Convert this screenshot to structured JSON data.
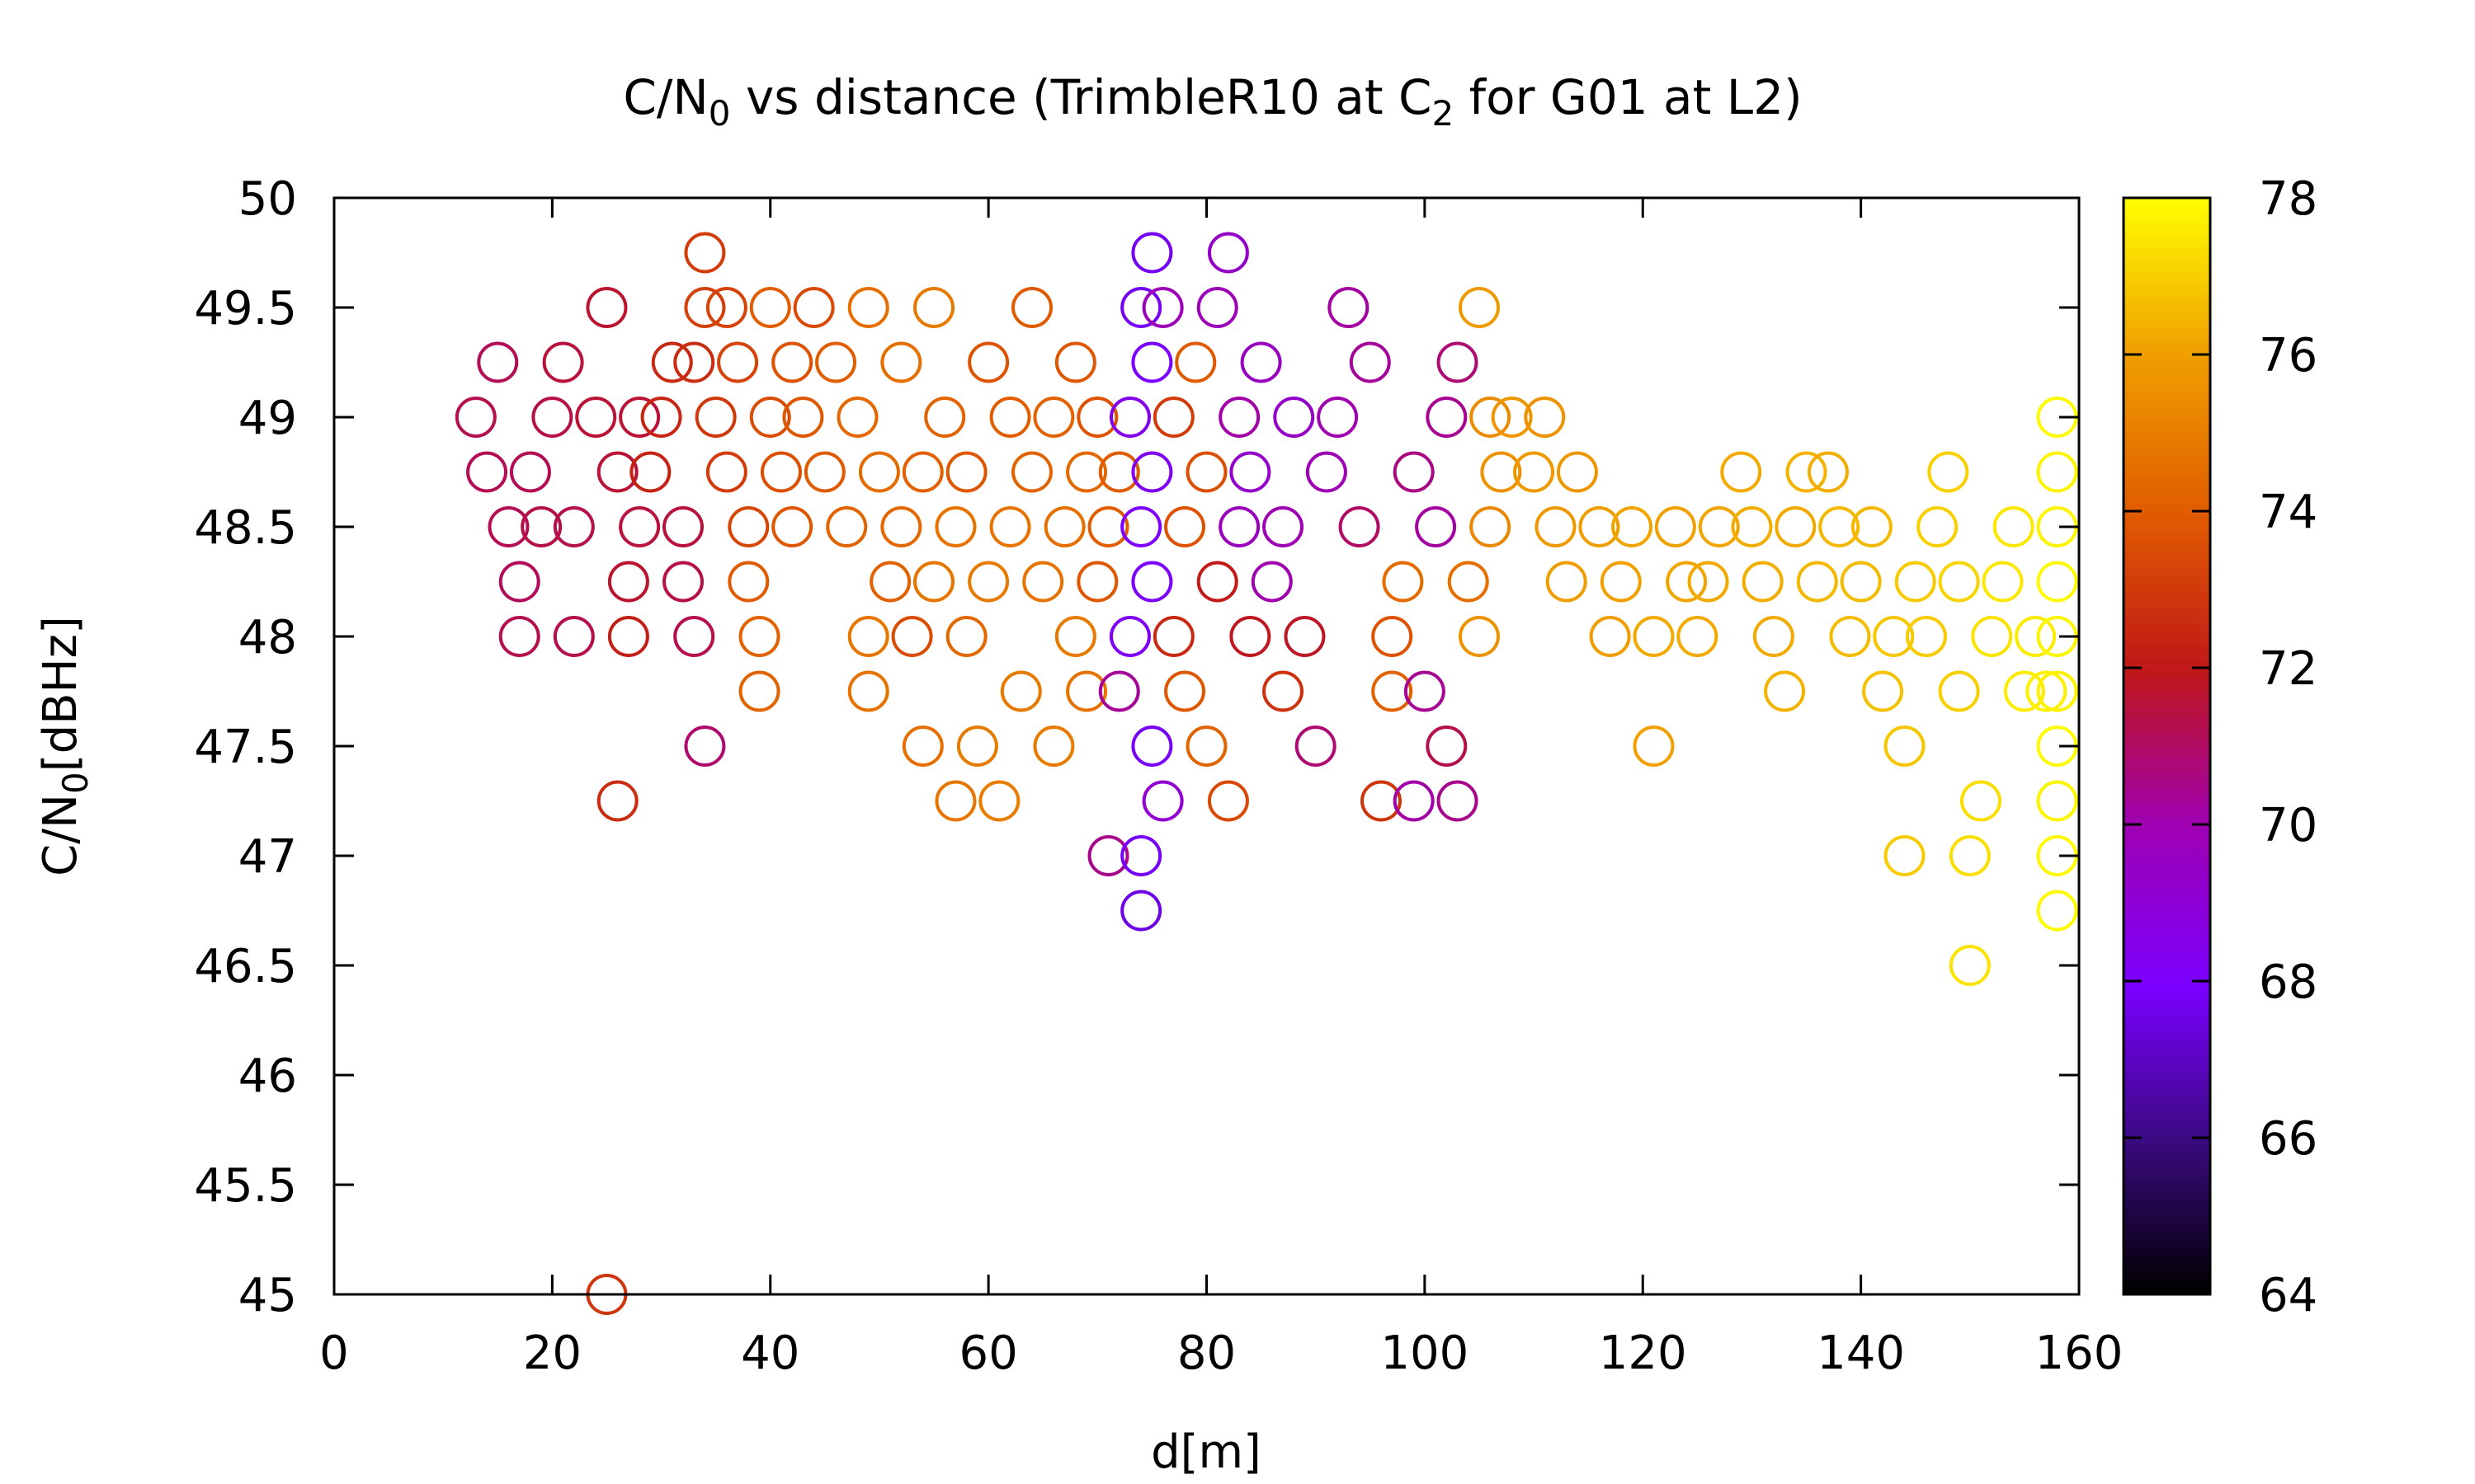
{
  "chart_data": {
    "type": "scatter",
    "title": "C/N0 vs distance (TrimbleR10 at C2 for G01 at L2)",
    "title_parts": {
      "a": "C/N",
      "sub1": "0",
      "b": " vs distance (TrimbleR10 at C",
      "sub2": "2",
      "c": " for G01 at L2)"
    },
    "xlabel": "d[m]",
    "ylabel_parts": {
      "a": "C/N",
      "sub": "0",
      "b": "[dBHz]"
    },
    "xlim": [
      0,
      160
    ],
    "ylim": [
      45,
      50
    ],
    "xticks": [
      "0",
      "20",
      "40",
      "60",
      "80",
      "100",
      "120",
      "140",
      "160"
    ],
    "yticks": [
      "45",
      "45.5",
      "46",
      "46.5",
      "47",
      "47.5",
      "48",
      "48.5",
      "49",
      "49.5",
      "50"
    ],
    "colorbar": {
      "min": 64,
      "max": 78,
      "ticks": [
        "64",
        "66",
        "68",
        "70",
        "72",
        "74",
        "76",
        "78"
      ],
      "palette": "black-blue-purple-red-orange-yellow"
    },
    "points": [
      [
        14,
        48.75,
        71.2
      ],
      [
        15,
        49.25,
        71.2
      ],
      [
        13,
        49,
        71.3
      ],
      [
        16,
        48.5,
        71.2
      ],
      [
        17,
        48.25,
        71.1
      ],
      [
        17,
        48,
        71.3
      ],
      [
        18,
        48.75,
        71.2
      ],
      [
        19,
        48.5,
        71.4
      ],
      [
        20,
        49,
        71.4
      ],
      [
        21,
        49.25,
        71.5
      ],
      [
        22,
        48,
        71.3
      ],
      [
        22,
        48.5,
        71.3
      ],
      [
        24,
        49,
        71.6
      ],
      [
        25,
        49.5,
        71.7
      ],
      [
        26,
        48.75,
        71.6
      ],
      [
        25,
        45,
        72.9
      ],
      [
        26,
        47.25,
        72.6
      ],
      [
        27,
        48,
        72.2
      ],
      [
        27,
        48.25,
        71.7
      ],
      [
        28,
        48.5,
        71.5
      ],
      [
        28,
        49,
        71.6
      ],
      [
        29,
        48.75,
        72.3
      ],
      [
        30,
        49,
        72.4
      ],
      [
        31,
        49.25,
        72.5
      ],
      [
        32,
        48.5,
        71.5
      ],
      [
        32,
        48.25,
        71.4
      ],
      [
        33,
        48,
        71.3
      ],
      [
        33,
        49.25,
        72.6
      ],
      [
        34,
        49.5,
        73.2
      ],
      [
        34,
        49.75,
        73.1
      ],
      [
        34,
        47.5,
        70.9
      ],
      [
        35,
        49,
        73.0
      ],
      [
        36,
        49.5,
        73.3
      ],
      [
        36,
        48.75,
        73.1
      ],
      [
        37,
        49.25,
        73.3
      ],
      [
        38,
        48.5,
        73.4
      ],
      [
        38,
        48.25,
        74.0
      ],
      [
        39,
        48,
        74.2
      ],
      [
        39,
        47.75,
        74.3
      ],
      [
        40,
        49,
        73.6
      ],
      [
        40,
        49.5,
        74.1
      ],
      [
        41,
        48.75,
        73.7
      ],
      [
        42,
        49.25,
        73.8
      ],
      [
        42,
        48.5,
        73.9
      ],
      [
        43,
        49,
        73.9
      ],
      [
        44,
        49.5,
        73.5
      ],
      [
        45,
        48.75,
        74.0
      ],
      [
        46,
        49.25,
        74.1
      ],
      [
        47,
        48.5,
        74.3
      ],
      [
        48,
        49,
        74.4
      ],
      [
        49,
        49.5,
        74.6
      ],
      [
        50,
        48.75,
        74.5
      ],
      [
        49,
        48,
        74.8
      ],
      [
        49,
        47.75,
        74.7
      ],
      [
        51,
        48.25,
        74.2
      ],
      [
        52,
        48.5,
        74.4
      ],
      [
        52,
        49.25,
        74.6
      ],
      [
        53,
        48,
        73.6
      ],
      [
        54,
        48.75,
        74.2
      ],
      [
        54,
        47.5,
        74.6
      ],
      [
        55,
        49.5,
        74.9
      ],
      [
        55,
        48.25,
        74.8
      ],
      [
        56,
        49,
        74.3
      ],
      [
        57,
        48.5,
        74.7
      ],
      [
        57,
        47.25,
        74.8
      ],
      [
        58,
        48,
        74.4
      ],
      [
        58,
        48.75,
        73.9
      ],
      [
        59,
        47.5,
        74.9
      ],
      [
        60,
        49.25,
        73.8
      ],
      [
        60,
        48.25,
        74.9
      ],
      [
        61,
        47.25,
        75.0
      ],
      [
        62,
        48.5,
        74.7
      ],
      [
        62,
        49,
        74.1
      ],
      [
        63,
        47.75,
        74.9
      ],
      [
        64,
        49.5,
        74.0
      ],
      [
        64,
        48.75,
        74.3
      ],
      [
        65,
        48.25,
        74.7
      ],
      [
        66,
        47.5,
        74.9
      ],
      [
        66,
        49,
        74.2
      ],
      [
        67,
        48.5,
        74.6
      ],
      [
        68,
        48,
        74.9
      ],
      [
        68,
        49.25,
        73.9
      ],
      [
        69,
        48.75,
        74.4
      ],
      [
        69,
        47.75,
        74.7
      ],
      [
        70,
        49,
        73.8
      ],
      [
        70,
        48.25,
        73.9
      ],
      [
        71,
        48.5,
        74.1
      ],
      [
        71,
        47,
        70.5
      ],
      [
        72,
        47.75,
        70.3
      ],
      [
        72,
        48.75,
        74.0
      ],
      [
        73,
        49,
        68.5
      ],
      [
        73,
        48,
        68.2
      ],
      [
        74,
        49.5,
        67.8
      ],
      [
        74,
        47,
        67.9
      ],
      [
        74,
        46.75,
        67.6
      ],
      [
        74,
        48.5,
        68.1
      ],
      [
        75,
        49.75,
        67.8
      ],
      [
        75,
        49.25,
        68.0
      ],
      [
        75,
        48.75,
        68.3
      ],
      [
        75,
        48.25,
        68.1
      ],
      [
        75,
        47.5,
        67.9
      ],
      [
        76,
        49.5,
        69.8
      ],
      [
        76,
        47.25,
        69.2
      ],
      [
        77,
        48,
        72.5
      ],
      [
        77,
        49,
        73.1
      ],
      [
        78,
        48.5,
        73.8
      ],
      [
        78,
        47.75,
        73.9
      ],
      [
        79,
        49.25,
        74.0
      ],
      [
        80,
        48.75,
        73.7
      ],
      [
        80,
        47.5,
        74.3
      ],
      [
        81,
        48.25,
        72.1
      ],
      [
        81,
        49.5,
        69.8
      ],
      [
        82,
        49.75,
        69.4
      ],
      [
        82,
        47.25,
        73.5
      ],
      [
        83,
        48.5,
        69.7
      ],
      [
        83,
        49,
        70.1
      ],
      [
        84,
        48,
        71.9
      ],
      [
        84,
        48.75,
        69.3
      ],
      [
        85,
        49.25,
        69.6
      ],
      [
        86,
        48.25,
        70.0
      ],
      [
        87,
        48.5,
        69.9
      ],
      [
        87,
        47.75,
        72.8
      ],
      [
        88,
        49,
        69.4
      ],
      [
        89,
        48,
        71.8
      ],
      [
        90,
        47.5,
        70.8
      ],
      [
        91,
        48.75,
        69.9
      ],
      [
        92,
        49,
        70.0
      ],
      [
        93,
        49.5,
        70.2
      ],
      [
        94,
        48.5,
        71.0
      ],
      [
        95,
        49.25,
        70.3
      ],
      [
        96,
        47.25,
        72.9
      ],
      [
        97,
        48,
        73.8
      ],
      [
        97,
        47.75,
        74.2
      ],
      [
        98,
        48.25,
        74.5
      ],
      [
        99,
        48.75,
        70.6
      ],
      [
        99,
        47.25,
        70.1
      ],
      [
        100,
        47.75,
        70.4
      ],
      [
        101,
        48.5,
        70.2
      ],
      [
        102,
        49,
        70.4
      ],
      [
        102,
        47.5,
        71.3
      ],
      [
        103,
        47.25,
        70.5
      ],
      [
        103,
        49.25,
        70.8
      ],
      [
        104,
        48.25,
        74.6
      ],
      [
        105,
        49.5,
        75.8
      ],
      [
        105,
        48,
        75.6
      ],
      [
        106,
        49,
        75.4
      ],
      [
        106,
        48.5,
        75.3
      ],
      [
        107,
        48.75,
        75.6
      ],
      [
        108,
        49,
        75.7
      ],
      [
        110,
        48.75,
        75.8
      ],
      [
        111,
        49,
        75.6
      ],
      [
        112,
        48.5,
        75.8
      ],
      [
        113,
        48.25,
        75.9
      ],
      [
        114,
        48.75,
        75.7
      ],
      [
        116,
        48.5,
        75.9
      ],
      [
        117,
        48,
        75.9
      ],
      [
        118,
        48.25,
        76.0
      ],
      [
        119,
        48.5,
        76.1
      ],
      [
        121,
        48,
        76.2
      ],
      [
        121,
        47.5,
        76.0
      ],
      [
        123,
        48.5,
        76.0
      ],
      [
        124,
        48.25,
        76.1
      ],
      [
        125,
        48,
        76.2
      ],
      [
        126,
        48.25,
        76.2
      ],
      [
        127,
        48.5,
        76.1
      ],
      [
        129,
        48.75,
        76.2
      ],
      [
        130,
        48.5,
        76.3
      ],
      [
        131,
        48.25,
        76.3
      ],
      [
        132,
        48,
        76.2
      ],
      [
        133,
        47.75,
        76.4
      ],
      [
        134,
        48.5,
        76.2
      ],
      [
        135,
        48.75,
        76.4
      ],
      [
        136,
        48.25,
        76.5
      ],
      [
        137,
        48.75,
        76.3
      ],
      [
        138,
        48.5,
        76.5
      ],
      [
        139,
        48,
        76.6
      ],
      [
        140,
        48.25,
        76.6
      ],
      [
        141,
        48.5,
        76.5
      ],
      [
        142,
        47.75,
        76.7
      ],
      [
        143,
        48,
        76.8
      ],
      [
        144,
        47,
        76.9
      ],
      [
        144,
        47.5,
        76.8
      ],
      [
        145,
        48.25,
        76.9
      ],
      [
        146,
        48,
        76.9
      ],
      [
        147,
        48.5,
        77.0
      ],
      [
        148,
        48.75,
        77.0
      ],
      [
        149,
        48.25,
        77.1
      ],
      [
        149,
        47.75,
        77.0
      ],
      [
        150,
        46.5,
        77.4
      ],
      [
        150,
        47,
        77.3
      ],
      [
        151,
        47.25,
        77.3
      ],
      [
        152,
        48,
        77.4
      ],
      [
        153,
        48.25,
        77.5
      ],
      [
        154,
        48.5,
        77.5
      ],
      [
        155,
        47.75,
        77.6
      ],
      [
        156,
        48,
        77.6
      ],
      [
        157,
        47.75,
        77.7
      ],
      [
        158,
        49,
        77.9
      ],
      [
        158,
        48.75,
        77.8
      ],
      [
        158,
        48.5,
        77.8
      ],
      [
        158,
        48.25,
        77.9
      ],
      [
        158,
        48,
        77.8
      ],
      [
        158,
        47.75,
        77.7
      ],
      [
        158,
        47.5,
        77.9
      ],
      [
        158,
        47.25,
        77.8
      ],
      [
        158,
        47,
        77.9
      ],
      [
        158,
        46.75,
        77.9
      ]
    ]
  }
}
